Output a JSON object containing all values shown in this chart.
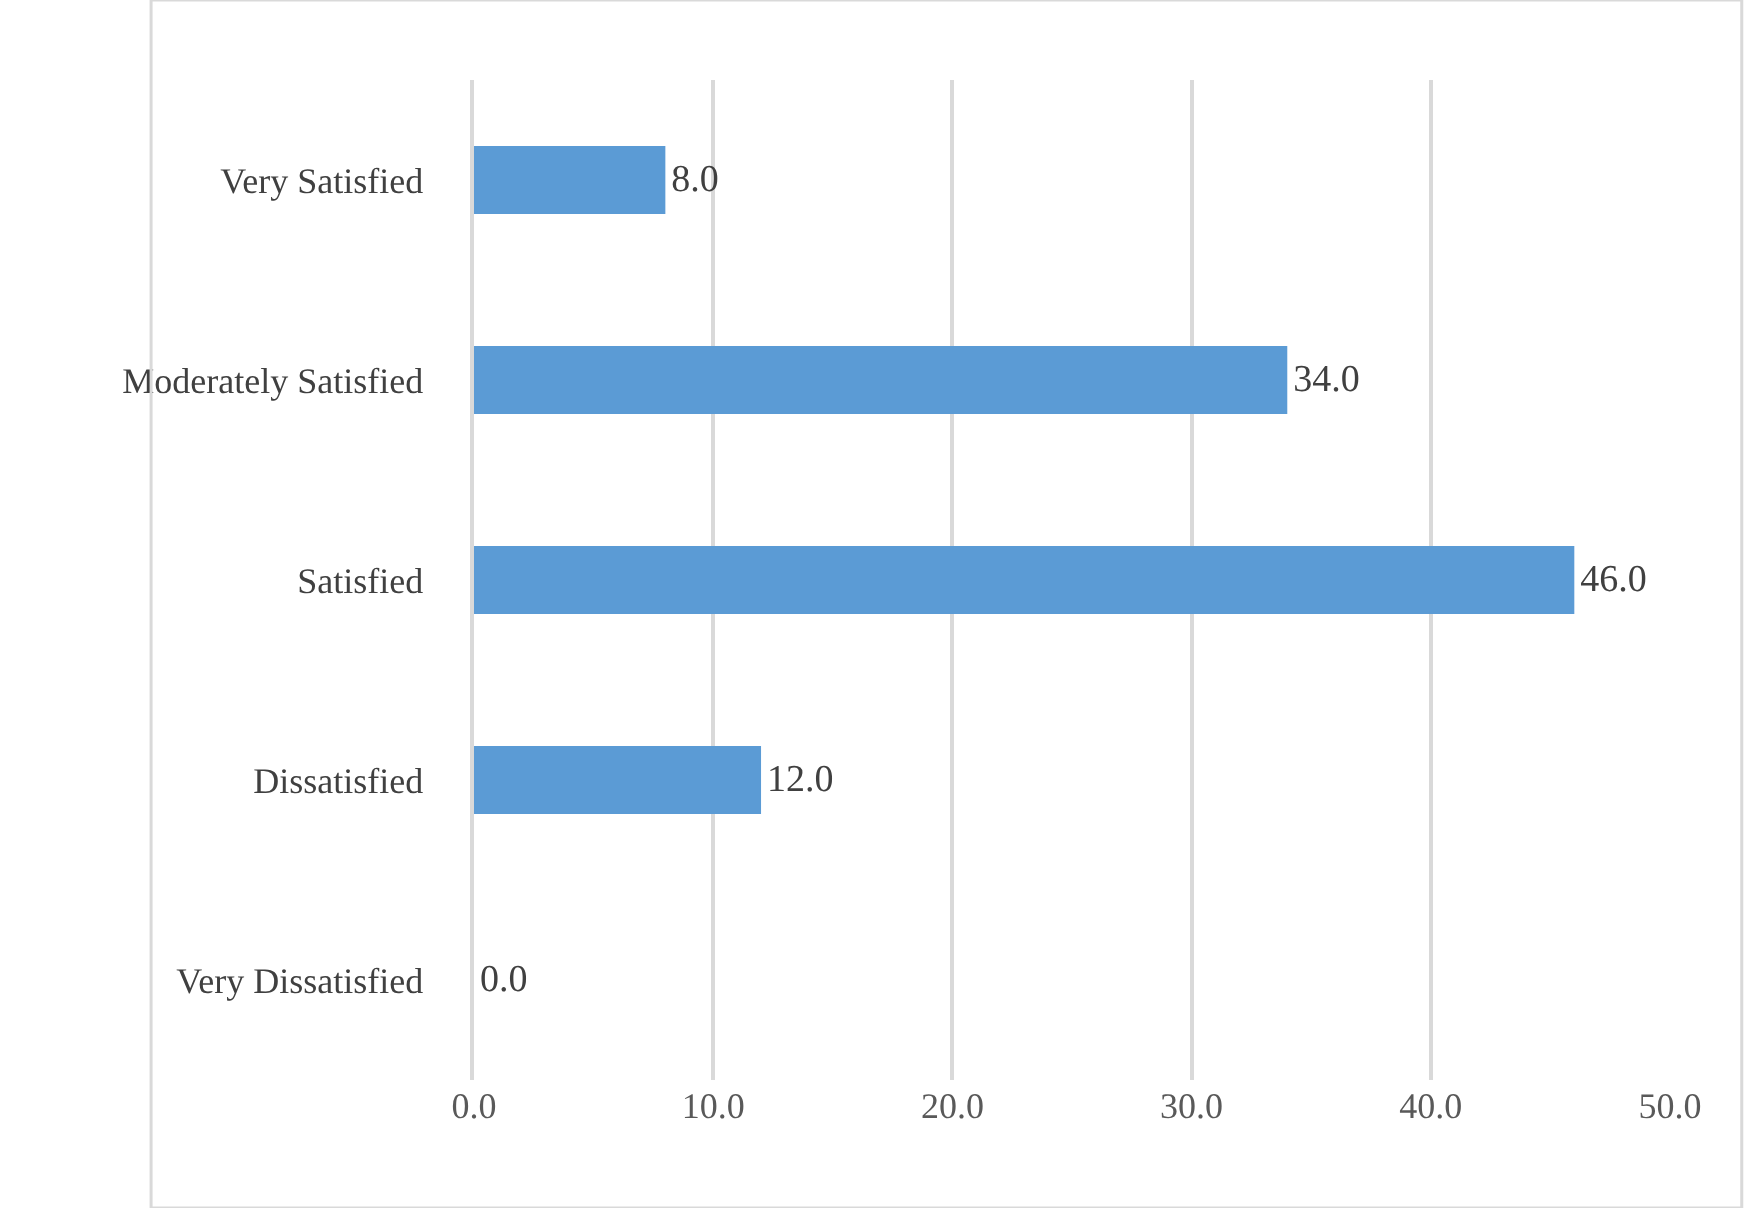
{
  "chart_data": {
    "type": "bar",
    "orientation": "horizontal",
    "categories": [
      "Very Satisfied",
      "Moderately Satisfied",
      "Satisfied",
      "Dissatisfied",
      "Very Dissatisfied"
    ],
    "values": [
      8.0,
      34.0,
      46.0,
      12.0,
      0.0
    ],
    "color": "#5b9bd5",
    "value_labels": [
      "8.0",
      "34.0",
      "46.0",
      "12.0",
      "0.0"
    ],
    "xlim": [
      0,
      50
    ],
    "xticks": [
      {
        "value": 0,
        "label": "0.0"
      },
      {
        "value": 10,
        "label": "10.0"
      },
      {
        "value": 20,
        "label": "20.0"
      },
      {
        "value": 30,
        "label": "30.0"
      },
      {
        "value": 40,
        "label": "40.0"
      },
      {
        "value": 50,
        "label": "50.0"
      }
    ],
    "grid": "x"
  }
}
